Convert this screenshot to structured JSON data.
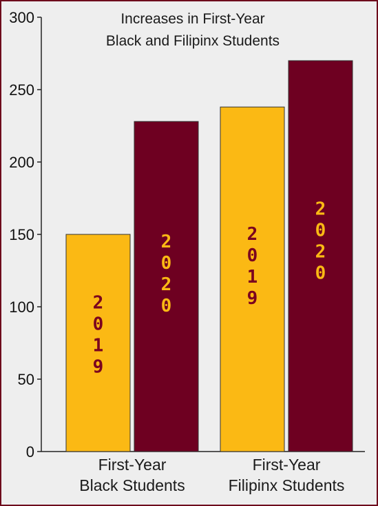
{
  "chart_data": {
    "type": "bar",
    "title_lines": [
      "Increases in First-Year",
      "Black and Filipinx Students"
    ],
    "categories": [
      {
        "lines": [
          "First-Year",
          "Black Students"
        ]
      },
      {
        "lines": [
          "First-Year",
          "Filipinx Students"
        ]
      }
    ],
    "series": [
      {
        "name": "2019",
        "values": [
          150,
          238
        ],
        "color": "#fbb914",
        "label_color": "#7a001f"
      },
      {
        "name": "2020",
        "values": [
          228,
          270
        ],
        "color": "#6e0021",
        "label_color": "#fbb914"
      }
    ],
    "y_ticks": [
      0,
      50,
      100,
      150,
      200,
      250,
      300
    ],
    "ylim": [
      0,
      300
    ],
    "grid": false,
    "legend": "none",
    "xlabel": "",
    "ylabel": ""
  }
}
